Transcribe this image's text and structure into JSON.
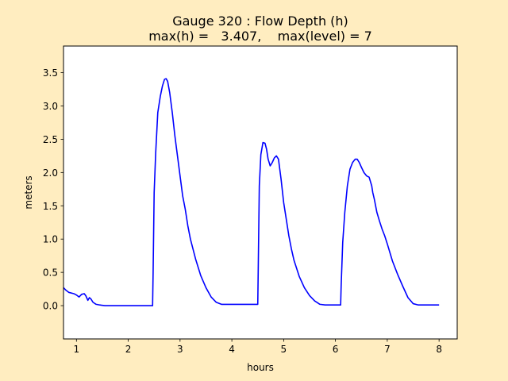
{
  "chart_data": {
    "type": "line",
    "title_line1": "Gauge 320 : Flow Depth (h)",
    "title_line2": "max(h) =   3.407,    max(level) = 7",
    "xlabel": "hours",
    "ylabel": "meters",
    "xlim": [
      0.75,
      8.35
    ],
    "ylim": [
      -0.5,
      3.9
    ],
    "x_ticks": [
      1,
      2,
      3,
      4,
      5,
      6,
      7,
      8
    ],
    "y_ticks": [
      0.0,
      0.5,
      1.0,
      1.5,
      2.0,
      2.5,
      3.0,
      3.5
    ],
    "grid": false,
    "series": [
      {
        "color": "#0000ff",
        "x": [
          0.75,
          0.8,
          0.85,
          0.95,
          1.0,
          1.05,
          1.1,
          1.15,
          1.18,
          1.22,
          1.25,
          1.28,
          1.32,
          1.38,
          1.45,
          1.55,
          1.7,
          2.0,
          2.3,
          2.47,
          2.48,
          2.5,
          2.53,
          2.57,
          2.62,
          2.66,
          2.7,
          2.73,
          2.76,
          2.8,
          2.85,
          2.9,
          2.95,
          3.0,
          3.05,
          3.1,
          3.15,
          3.2,
          3.3,
          3.4,
          3.5,
          3.6,
          3.7,
          3.8,
          3.9,
          4.0,
          4.5,
          4.51,
          4.53,
          4.56,
          4.6,
          4.64,
          4.67,
          4.7,
          4.74,
          4.78,
          4.82,
          4.86,
          4.9,
          4.95,
          5.0,
          5.05,
          5.1,
          5.15,
          5.2,
          5.3,
          5.4,
          5.5,
          5.6,
          5.7,
          5.8,
          5.9,
          6.0,
          6.1,
          6.11,
          6.14,
          6.18,
          6.23,
          6.28,
          6.33,
          6.38,
          6.42,
          6.46,
          6.5,
          6.55,
          6.6,
          6.65,
          6.7,
          6.72,
          6.75,
          6.8,
          6.85,
          6.9,
          6.95,
          7.0,
          7.05,
          7.1,
          7.2,
          7.3,
          7.4,
          7.5,
          7.6,
          7.7,
          7.8,
          8.0
        ],
        "y": [
          0.27,
          0.23,
          0.2,
          0.18,
          0.16,
          0.13,
          0.17,
          0.18,
          0.15,
          0.08,
          0.12,
          0.1,
          0.05,
          0.02,
          0.01,
          0.0,
          0.0,
          0.0,
          0.0,
          0.0,
          0.5,
          1.7,
          2.3,
          2.9,
          3.15,
          3.3,
          3.4,
          3.41,
          3.37,
          3.2,
          2.9,
          2.55,
          2.25,
          1.95,
          1.65,
          1.45,
          1.2,
          1.0,
          0.7,
          0.45,
          0.27,
          0.13,
          0.05,
          0.02,
          0.02,
          0.02,
          0.02,
          0.6,
          1.8,
          2.27,
          2.45,
          2.44,
          2.35,
          2.2,
          2.1,
          2.15,
          2.22,
          2.25,
          2.2,
          1.9,
          1.55,
          1.3,
          1.05,
          0.85,
          0.68,
          0.44,
          0.27,
          0.15,
          0.07,
          0.02,
          0.01,
          0.01,
          0.01,
          0.01,
          0.3,
          0.95,
          1.4,
          1.8,
          2.05,
          2.15,
          2.2,
          2.2,
          2.15,
          2.08,
          2.0,
          1.95,
          1.93,
          1.8,
          1.7,
          1.6,
          1.4,
          1.27,
          1.15,
          1.05,
          0.93,
          0.8,
          0.67,
          0.47,
          0.29,
          0.12,
          0.03,
          0.01,
          0.01,
          0.01,
          0.01
        ]
      }
    ]
  }
}
